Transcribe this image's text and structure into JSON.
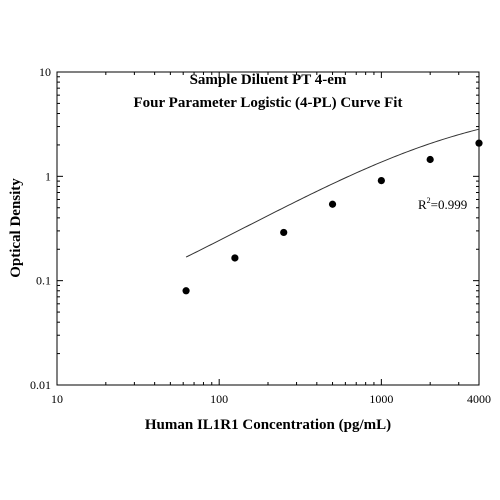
{
  "chart_data": {
    "type": "scatter",
    "title_lines": [
      "Sample Diluent PT 4-em",
      "Four Parameter Logistic (4-PL) Curve Fit"
    ],
    "xlabel": "Human IL1R1 Concentration (pg/mL)",
    "ylabel": "Optical Density",
    "x_scale": "log",
    "y_scale": "log",
    "xlim": [
      10,
      4000
    ],
    "ylim": [
      0.01,
      10
    ],
    "x_ticks": [
      {
        "value": 10,
        "label": "10"
      },
      {
        "value": 100,
        "label": "100"
      },
      {
        "value": 1000,
        "label": "1000"
      },
      {
        "value": 4000,
        "label": "4000"
      }
    ],
    "y_ticks": [
      {
        "value": 0.01,
        "label": "0.01"
      },
      {
        "value": 0.1,
        "label": "0.1"
      },
      {
        "value": 1,
        "label": "1"
      },
      {
        "value": 10,
        "label": "10"
      }
    ],
    "points": [
      {
        "x": 62.5,
        "y": 0.08
      },
      {
        "x": 125,
        "y": 0.165
      },
      {
        "x": 250,
        "y": 0.29
      },
      {
        "x": 500,
        "y": 0.54
      },
      {
        "x": 1000,
        "y": 0.91
      },
      {
        "x": 2000,
        "y": 1.45
      },
      {
        "x": 4000,
        "y": 2.08
      }
    ],
    "fit": {
      "a": 0.02,
      "b": 0.9,
      "c": 3000,
      "d": 5
    },
    "annotation": {
      "prefix": "R",
      "superscript": "2",
      "suffix": "=0.999"
    },
    "grid": false,
    "colors": {
      "marker": "#000000",
      "curve": "#333333",
      "axes": "#000000"
    }
  }
}
